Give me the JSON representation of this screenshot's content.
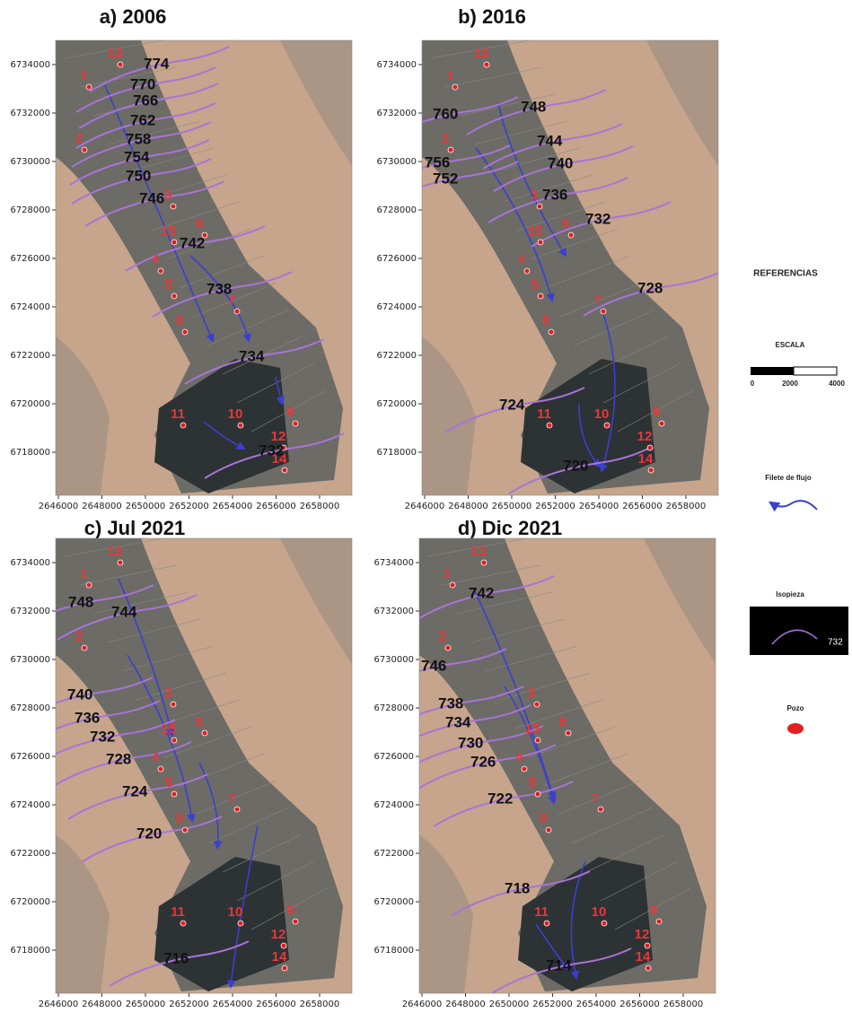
{
  "panels": [
    {
      "title": "a) 2006",
      "contours": [
        774,
        770,
        766,
        762,
        758,
        754,
        750,
        746,
        742,
        738,
        734,
        732
      ],
      "wells": [
        "13",
        "1",
        "2",
        "3",
        "15",
        "6",
        "4",
        "5",
        "7",
        "8",
        "11",
        "10",
        "9",
        "12",
        "14"
      ]
    },
    {
      "title": "b) 2016",
      "contours": [
        748,
        760,
        744,
        740,
        756,
        752,
        736,
        732,
        728,
        724,
        720
      ],
      "wells": [
        "13",
        "1",
        "2",
        "3",
        "15",
        "6",
        "4",
        "5",
        "7",
        "8",
        "11",
        "10",
        "9",
        "12",
        "14"
      ]
    },
    {
      "title": "c) Jul 2021",
      "contours": [
        748,
        744,
        740,
        736,
        732,
        728,
        724,
        720,
        716
      ],
      "wells": [
        "13",
        "1",
        "2",
        "3",
        "15",
        "6",
        "4",
        "5",
        "7",
        "8",
        "11",
        "10",
        "9",
        "12",
        "14"
      ]
    },
    {
      "title": "d) Dic 2021",
      "contours": [
        742,
        746,
        738,
        734,
        730,
        726,
        722,
        718,
        714
      ],
      "wells": [
        "13",
        "1",
        "2",
        "3",
        "15",
        "6",
        "4",
        "5",
        "7",
        "8",
        "11",
        "10",
        "9",
        "12",
        "14"
      ]
    }
  ],
  "axes": {
    "yticks": [
      6734000,
      6732000,
      6730000,
      6728000,
      6726000,
      6724000,
      6722000,
      6720000,
      6718000
    ],
    "xticks": [
      2646000,
      2648000,
      2650000,
      2652000,
      2654000,
      2656000,
      2658000
    ]
  },
  "legend": {
    "title": "REFERENCIAS",
    "scale_title": "ESCALA",
    "scale_labels": [
      "0",
      "2000",
      "4000"
    ],
    "flow": "Filete de flujo",
    "isopieza": "Isopieza",
    "isopieza_example": "732",
    "well": "Pozo"
  }
}
